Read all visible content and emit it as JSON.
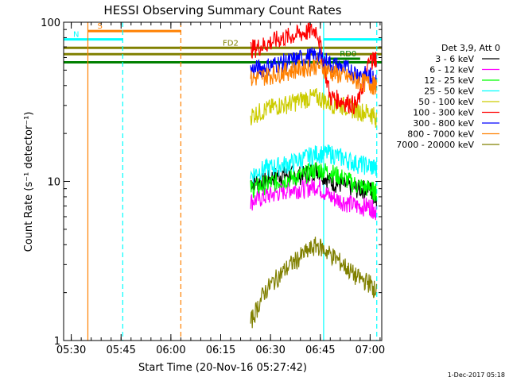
{
  "chart_data": {
    "type": "line",
    "title": "HESSI Observing Summary Count Rates",
    "xlabel": "Start Time (20-Nov-16 05:27:42)",
    "ylabel": "Count Rate (s⁻¹ detector⁻¹)",
    "y_scale": "log",
    "ylim": [
      1,
      100
    ],
    "xlim": [
      "05:27:42",
      "07:03:30"
    ],
    "x_ticks": [
      "05:30",
      "05:45",
      "06:00",
      "06:15",
      "06:30",
      "06:45",
      "07:00"
    ],
    "y_ticks": [
      "1",
      "10",
      "100"
    ],
    "grid": false,
    "legend_position": "right",
    "legend_title": "Det 3,9, Att 0",
    "footer_date": "1-Dec-2017 05:18",
    "series": [
      {
        "name": "3 - 6 keV",
        "color": "#000000",
        "x": [
          "06:24",
          "06:28",
          "06:32",
          "06:36",
          "06:40",
          "06:44",
          "06:48",
          "06:52",
          "06:56",
          "07:00",
          "07:02"
        ],
        "values": [
          10,
          10,
          11,
          11,
          11,
          12,
          10,
          9.5,
          9,
          9,
          8
        ]
      },
      {
        "name": "6 - 12 keV",
        "color": "#ff00ff",
        "x": [
          "06:24",
          "06:28",
          "06:32",
          "06:36",
          "06:40",
          "06:44",
          "06:48",
          "06:52",
          "06:56",
          "07:00",
          "07:02"
        ],
        "values": [
          7.5,
          8,
          8.5,
          9,
          9,
          9.5,
          8,
          7.5,
          7,
          7,
          6.5
        ]
      },
      {
        "name": "12 - 25 keV",
        "color": "#00ff00",
        "x": [
          "06:24",
          "06:28",
          "06:32",
          "06:36",
          "06:40",
          "06:44",
          "06:48",
          "06:52",
          "06:56",
          "07:00",
          "07:02"
        ],
        "values": [
          9,
          9.5,
          10,
          10.5,
          11,
          12,
          11.5,
          10.5,
          9.5,
          9,
          8.5
        ]
      },
      {
        "name": "25 - 50 keV",
        "color": "#00ffff",
        "x": [
          "06:24",
          "06:28",
          "06:32",
          "06:36",
          "06:40",
          "06:44",
          "06:48",
          "06:52",
          "06:56",
          "07:00",
          "07:02"
        ],
        "values": [
          11,
          12,
          12.5,
          13,
          14,
          15,
          15,
          14,
          13,
          12.5,
          12
        ]
      },
      {
        "name": "50 - 100 keV",
        "color": "#cccc00",
        "x": [
          "06:24",
          "06:28",
          "06:32",
          "06:36",
          "06:40",
          "06:44",
          "06:48",
          "06:52",
          "06:56",
          "07:00",
          "07:02"
        ],
        "values": [
          26,
          28,
          30,
          31,
          33,
          34,
          31,
          30,
          28,
          27,
          25
        ]
      },
      {
        "name": "100 - 300 keV",
        "color": "#ff0000",
        "x": [
          "06:24",
          "06:28",
          "06:32",
          "06:36",
          "06:40",
          "06:44",
          "06:48",
          "06:52",
          "06:56",
          "07:00",
          "07:02"
        ],
        "values": [
          68,
          72,
          78,
          82,
          86,
          90,
          34,
          32,
          30,
          58,
          60
        ]
      },
      {
        "name": "300 - 800 keV",
        "color": "#0000ff",
        "x": [
          "06:24",
          "06:28",
          "06:32",
          "06:36",
          "06:40",
          "06:44",
          "06:48",
          "06:52",
          "06:56",
          "07:00",
          "07:02"
        ],
        "values": [
          50,
          52,
          55,
          57,
          60,
          62,
          55,
          52,
          48,
          46,
          44
        ]
      },
      {
        "name": "800 - 7000 keV",
        "color": "#ff8000",
        "x": [
          "06:24",
          "06:28",
          "06:32",
          "06:36",
          "06:40",
          "06:44",
          "06:48",
          "06:52",
          "06:56",
          "07:00",
          "07:02"
        ],
        "values": [
          44,
          46,
          48,
          50,
          52,
          54,
          49,
          46,
          43,
          41,
          40
        ]
      },
      {
        "name": "7000 - 20000 keV",
        "color": "#808000",
        "x": [
          "06:24",
          "06:28",
          "06:32",
          "06:36",
          "06:40",
          "06:44",
          "06:48",
          "06:52",
          "06:56",
          "07:00",
          "07:02"
        ],
        "values": [
          1.3,
          2,
          2.5,
          3,
          3.5,
          4,
          3.5,
          3,
          2.5,
          2.3,
          2
        ]
      }
    ],
    "vertical_markers": [
      {
        "x": "05:35:00",
        "color": "#ff8000",
        "style": "solid"
      },
      {
        "x": "05:45:30",
        "color": "#00ffff",
        "style": "dashed"
      },
      {
        "x": "06:03:00",
        "color": "#ff8000",
        "style": "dashed"
      },
      {
        "x": "06:46:00",
        "color": "#00ffff",
        "style": "solid"
      },
      {
        "x": "07:02:00",
        "color": "#00ffff",
        "style": "dashed"
      }
    ],
    "flag_bars": [
      {
        "label": "S",
        "x_start": "05:35:00",
        "x_end": "06:03:00",
        "y": 88,
        "color": "#ff8000"
      },
      {
        "label": "N",
        "x_start": "05:27:42",
        "x_end": "05:45:30",
        "y": 78,
        "color": "#00ffff"
      },
      {
        "label": "",
        "x_start": "06:46:00",
        "x_end": "07:03:30",
        "y": 78,
        "color": "#00ffff"
      },
      {
        "label": "FD2",
        "x_start": "05:27:42",
        "x_end": "07:03:30",
        "y": 69,
        "color": "#808000"
      },
      {
        "label": "",
        "x_start": "05:27:42",
        "x_end": "07:03:30",
        "y": 63,
        "color": "#808000"
      },
      {
        "label": "RD0",
        "x_start": "06:48:00",
        "x_end": "06:57:00",
        "y": 59,
        "color": "#008000"
      },
      {
        "label": "",
        "x_start": "05:27:42",
        "x_end": "07:03:30",
        "y": 56,
        "color": "#008000"
      }
    ]
  }
}
